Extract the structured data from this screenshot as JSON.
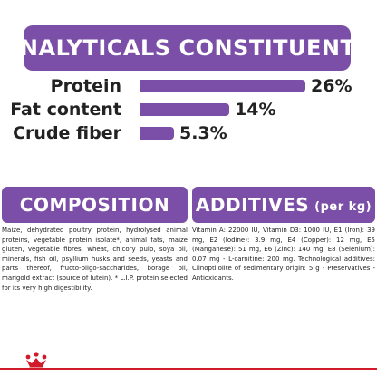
{
  "colors": {
    "accent": "#7b4fa8",
    "brand_red": "#d11a2a",
    "text": "#222222"
  },
  "header": {
    "title": "ANALYTICALS CONSTITUENTS"
  },
  "analysis": {
    "rows": [
      {
        "label": "Protein",
        "value": "26%",
        "fraction": 0.26
      },
      {
        "label": "Fat content",
        "value": "14%",
        "fraction": 0.14
      },
      {
        "label": "Crude fiber",
        "value": "5.3%",
        "fraction": 0.053
      }
    ]
  },
  "composition": {
    "title": "COMPOSITION",
    "text": "Maize, dehydrated poultry protein, hydrolysed animal proteins, vegetable protein isolate*, animal fats, maize gluten, vegetable fibres, wheat, chicory pulp, soya oil, minerals, fish oil, psyllium husks and seeds, yeasts and parts thereof, fructo-oligo-saccharides, borage oil, marigold extract (source of lutein). * L.I.P. protein selected for its very high digestibility."
  },
  "additives": {
    "title": "ADDITIVES",
    "unit": "(per kg)",
    "text": "Vitamin A: 22000 IU, Vitamin D3: 1000 IU, E1 (Iron): 39 mg, E2 (Iodine): 3.9 mg, E4 (Copper): 12 mg, E5 (Manganese): 51 mg, E6 (Zinc): 140 mg, E8 (Selenium): 0.07 mg - L-carnitine: 200 mg. Technological additives: Clinoptilolite of sedimentary origin: 5 g - Preservatives - Antioxidants."
  },
  "footer": {
    "logo_icon": "royal-canin-crown-icon"
  }
}
